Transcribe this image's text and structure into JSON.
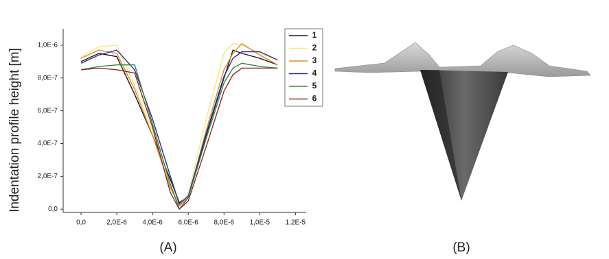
{
  "chart_data": {
    "type": "line",
    "y_label": "Indentation profile height [m]",
    "x": [
      0,
      1e-06,
      2e-06,
      3e-06,
      4e-06,
      5e-06,
      5.5e-06,
      6e-06,
      7e-06,
      8e-06,
      8.5e-06,
      9e-06,
      1e-05,
      1.1e-05
    ],
    "series": [
      {
        "name": "1",
        "color": "#1a1a1a",
        "values": [
          9e-07,
          9.5e-07,
          9.3e-07,
          7e-07,
          4.5e-07,
          1.8e-07,
          4e-08,
          8e-08,
          4.5e-07,
          8e-07,
          9.7e-07,
          9.5e-07,
          9.2e-07,
          8.8e-07
        ]
      },
      {
        "name": "2",
        "color": "#f2ea7a",
        "values": [
          9.3e-07,
          9.9e-07,
          1e-06,
          7.5e-07,
          4.8e-07,
          1.5e-07,
          3e-08,
          9e-08,
          5.5e-07,
          9.5e-07,
          1.01e-06,
          1e-06,
          9.5e-07,
          9.1e-07
        ]
      },
      {
        "name": "3",
        "color": "#e08a2c",
        "values": [
          9.2e-07,
          9.7e-07,
          9.5e-07,
          7.3e-07,
          4.5e-07,
          1.3e-07,
          2e-08,
          7e-08,
          4.8e-07,
          8.5e-07,
          9.5e-07,
          1.01e-06,
          9.4e-07,
          8.8e-07
        ]
      },
      {
        "name": "4",
        "color": "#2a2aa8",
        "values": [
          8.9e-07,
          9.4e-07,
          9.7e-07,
          8.5e-07,
          5.5e-07,
          2e-07,
          3e-08,
          8e-08,
          4.6e-07,
          8.1e-07,
          9.2e-07,
          9.6e-07,
          9.6e-07,
          9.1e-07
        ]
      },
      {
        "name": "5",
        "color": "#2e8a3e",
        "values": [
          8.5e-07,
          8.7e-07,
          8.8e-07,
          8.8e-07,
          5.2e-07,
          1.5e-07,
          0.0,
          7e-08,
          4.3e-07,
          7.7e-07,
          8.6e-07,
          8.9e-07,
          8.7e-07,
          8.6e-07
        ]
      },
      {
        "name": "6",
        "color": "#8c2a2a",
        "values": [
          8.5e-07,
          8.6e-07,
          8.5e-07,
          8.3e-07,
          5e-07,
          1e-07,
          0.0,
          5e-08,
          3.8e-07,
          7.2e-07,
          8.2e-07,
          8.6e-07,
          8.6e-07,
          8.6e-07
        ]
      }
    ],
    "xlim": [
      -1e-06,
      1.26e-05
    ],
    "ylim": [
      -2e-08,
      1.1e-06
    ],
    "xticks": [
      {
        "value": 0,
        "label": "0,0"
      },
      {
        "value": 2e-06,
        "label": "2,0E-6"
      },
      {
        "value": 4e-06,
        "label": "4,0E-6"
      },
      {
        "value": 6e-06,
        "label": "6,0E-6"
      },
      {
        "value": 8e-06,
        "label": "8,0E-6"
      },
      {
        "value": 1e-05,
        "label": "1,0E-5"
      },
      {
        "value": 1.2e-05,
        "label": "1,2E-5"
      }
    ],
    "yticks": [
      {
        "value": 0,
        "label": "0,0"
      },
      {
        "value": 2e-07,
        "label": "2,0E-7"
      },
      {
        "value": 4e-07,
        "label": "4,0E-7"
      },
      {
        "value": 6e-07,
        "label": "6,0E-7"
      },
      {
        "value": 8e-07,
        "label": "8,0E-7"
      },
      {
        "value": 1e-06,
        "label": "1,0E-6"
      }
    ],
    "captions": [
      "(A)",
      "(B)"
    ]
  }
}
